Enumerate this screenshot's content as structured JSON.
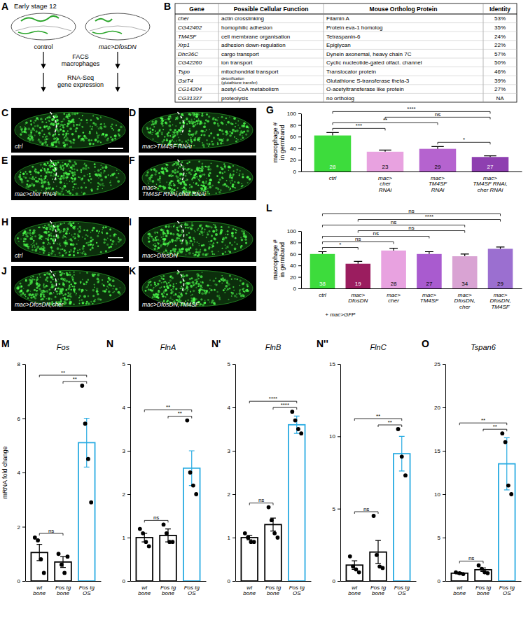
{
  "diagram": {
    "panel": "A",
    "stage": "Early stage 12",
    "groups": [
      "control",
      "mac>DfosDN"
    ],
    "steps": [
      "FACS\nmacrophages",
      "RNA-Seq\ngene expression"
    ]
  },
  "table": {
    "panel": "B",
    "header": [
      "Gene",
      "Possible Cellular Function",
      "Mouse Ortholog Protein",
      "Identity"
    ],
    "rows": [
      [
        "cher",
        "actin crosslinking",
        "Filamin A",
        "53%"
      ],
      [
        "CG42402",
        "homophilic adhesion",
        "Protein eva-1 homolog",
        "35%"
      ],
      [
        "TM4SF",
        "cell membrane organisation",
        "Tetraspanin-6",
        "24%"
      ],
      [
        "Xrp1",
        "adhesion down-regulation",
        "Epiglycan",
        "22%"
      ],
      [
        "Dhc36C",
        "cargo transport",
        "Dynein axonemal, heavy chain 7C",
        "57%"
      ],
      [
        "CG42260",
        "ion transport",
        "Cyclic nucleotide-gated olfact. channel",
        "50%"
      ],
      [
        "Tspo",
        "mitochondrial transport",
        "Translocator protein",
        "46%"
      ],
      [
        "GstT4",
        "detoxification\n(glutathione transfer)",
        "Glutathione S-transferase theta-3",
        "39%"
      ],
      [
        "CG14204",
        "acetyl-CoA metabolism",
        "O-acetyltransferase like protein",
        "27%"
      ],
      [
        "CG31337",
        "proteolysis",
        "no ortholog",
        "NA"
      ]
    ]
  },
  "images": [
    {
      "panel": "C",
      "label": "ctrl"
    },
    {
      "panel": "D",
      "label": "mac>TM4SF RNAi"
    },
    {
      "panel": "E",
      "label": "mac>cher RNAi"
    },
    {
      "panel": "F",
      "label": "mac>\nTM4SF RNAi,cher RNAi"
    },
    {
      "panel": "H",
      "label": "ctrl"
    },
    {
      "panel": "I",
      "label": "mac>DfosDN"
    },
    {
      "panel": "J",
      "label": "mac>DfosDN,cher"
    },
    {
      "panel": "K",
      "label": "mac>DfosDN,TM4SF"
    }
  ],
  "chart_data": [
    {
      "type": "bar",
      "panel": "G",
      "y_label": "macrophage #\nin germband",
      "categories": [
        "ctrl",
        "mac>\ncher\nRNAi",
        "mac>\nTM4SF\nRNAi",
        "mac>\nTM4SF RNAi,\ncher RNAi"
      ],
      "values": [
        62,
        34,
        39,
        25
      ],
      "errors": [
        5,
        3,
        4,
        2
      ],
      "n": [
        28,
        23,
        29,
        27
      ],
      "colors": [
        "#3ddc3c",
        "#e8a2e0",
        "#b563cf",
        "#8e3fb0"
      ],
      "ylim": [
        0,
        100
      ],
      "yticks": [
        0,
        20,
        40,
        60,
        80,
        100
      ],
      "annotations": [
        {
          "text": "***",
          "between": [
            "ctrl",
            "mac>\ncher\nRNAi"
          ]
        },
        {
          "text": "**",
          "between": [
            "ctrl",
            "mac>\nTM4SF\nRNAi"
          ]
        },
        {
          "text": "****",
          "between": [
            "ctrl",
            "mac>\nTM4SF RNAi,\ncher RNAi"
          ]
        },
        {
          "text": "ns",
          "between": [
            "mac>\ncher\nRNAi",
            "mac>\nTM4SF RNAi,\ncher RNAi"
          ]
        },
        {
          "text": "*",
          "between": [
            "mac>\nTM4SF\nRNAi",
            "mac>\nTM4SF RNAi,\ncher RNAi"
          ]
        }
      ]
    },
    {
      "type": "bar",
      "panel": "L",
      "y_label": "macrophage #\nin germband",
      "categories": [
        "ctrl",
        "mac>\nDfosDN",
        "mac>\ncher",
        "mac>\nTM4SF",
        "mac>\nDfosDN,\ncher",
        "mac>\nDfosDN,\nTM4SF"
      ],
      "values": [
        60,
        43,
        66,
        60,
        56,
        69
      ],
      "errors": [
        4,
        4,
        4,
        4,
        4,
        3
      ],
      "n": [
        38,
        19,
        28,
        27,
        34,
        29
      ],
      "colors": [
        "#3ddc3c",
        "#9b1d5f",
        "#e8a2e0",
        "#a95bcf",
        "#d9a3d3",
        "#9b6fd0"
      ],
      "ylim": [
        0,
        100
      ],
      "yticks": [
        0,
        20,
        40,
        60,
        80,
        100
      ],
      "annotations": [
        {
          "text": "*",
          "between": [
            "ctrl",
            "mac>\nDfosDN"
          ]
        },
        {
          "text": "ns",
          "between": [
            "ctrl",
            "mac>\ncher"
          ]
        },
        {
          "text": "ns",
          "between": [
            "ctrl",
            "mac>\nTM4SF"
          ]
        },
        {
          "text": "ns",
          "between": [
            "ctrl",
            "mac>\nDfosDN,\ncher"
          ]
        },
        {
          "text": "ns",
          "between": [
            "ctrl",
            "mac>\nDfosDN,\nTM4SF"
          ]
        },
        {
          "text": "ns",
          "between": [
            "mac>\nDfosDN",
            "mac>\nDfosDN,\ncher"
          ]
        },
        {
          "text": "****",
          "between": [
            "mac>\nDfosDN",
            "mac>\nDfosDN,\nTM4SF"
          ]
        },
        {
          "text": "+ mac>GFP",
          "under": [
            "ctrl",
            "mac>\nDfosDN"
          ]
        }
      ]
    },
    {
      "type": "bar",
      "panel": "M",
      "title": "Fos",
      "y_label": "mRNA fold change",
      "categories": [
        "wt\nbone",
        "Fos tg\nbone",
        "Fos tg\nOS"
      ],
      "values": [
        1.05,
        0.7,
        5.1
      ],
      "errors": [
        0.3,
        0.2,
        0.9
      ],
      "points": [
        [
          1.6,
          1.5,
          0.8,
          0.3
        ],
        [
          1.0,
          0.6,
          0.3,
          0.9
        ],
        [
          7.2,
          5.8,
          4.5,
          2.9
        ]
      ],
      "colors": [
        "#000000",
        "#000000",
        "#29abe2"
      ],
      "marker": "circle",
      "ylim": [
        0,
        8
      ],
      "yticks": [
        0,
        2,
        4,
        6,
        8
      ],
      "annotations": [
        {
          "text": "ns",
          "between": [
            "wt\nbone",
            "Fos tg\nbone"
          ]
        },
        {
          "text": "**",
          "between": [
            "wt\nbone",
            "Fos tg\nOS"
          ]
        },
        {
          "text": "**",
          "between": [
            "Fos tg\nbone",
            "Fos tg\nOS"
          ]
        }
      ]
    },
    {
      "type": "bar",
      "panel": "N",
      "title": "FlnA",
      "categories": [
        "wt\nbone",
        "Fos tg\nbone",
        "Fos tg\nOS"
      ],
      "values": [
        1.0,
        1.05,
        2.6
      ],
      "errors": [
        0.1,
        0.15,
        0.4
      ],
      "points": [
        [
          1.2,
          1.1,
          0.9,
          0.8
        ],
        [
          1.3,
          1.1,
          0.9,
          0.9
        ],
        [
          3.7,
          2.5,
          2.2,
          2.0
        ]
      ],
      "colors": [
        "#000000",
        "#000000",
        "#29abe2"
      ],
      "marker": "circle",
      "ylim": [
        0,
        5
      ],
      "yticks": [
        0,
        1,
        2,
        3,
        4,
        5
      ],
      "annotations": [
        {
          "text": "ns",
          "between": [
            "wt\nbone",
            "Fos tg\nbone"
          ]
        },
        {
          "text": "**",
          "between": [
            "wt\nbone",
            "Fos tg\nOS"
          ]
        },
        {
          "text": "**",
          "between": [
            "Fos tg\nbone",
            "Fos tg\nOS"
          ]
        }
      ]
    },
    {
      "type": "bar",
      "panel": "N'",
      "title": "FlnB",
      "categories": [
        "wt\nbone",
        "Fos tg\nbone",
        "Fos tg\nOS"
      ],
      "values": [
        1.0,
        1.3,
        3.6
      ],
      "errors": [
        0.05,
        0.15,
        0.2
      ],
      "points": [
        [
          1.1,
          1.0,
          0.9,
          0.9
        ],
        [
          1.7,
          1.4,
          1.1,
          1.0
        ],
        [
          3.9,
          3.7,
          3.5,
          3.4
        ]
      ],
      "colors": [
        "#000000",
        "#000000",
        "#29abe2"
      ],
      "marker": "circle",
      "ylim": [
        0,
        5
      ],
      "yticks": [
        0,
        1,
        2,
        3,
        4,
        5
      ],
      "annotations": [
        {
          "text": "ns",
          "between": [
            "wt\nbone",
            "Fos tg\nbone"
          ]
        },
        {
          "text": "****",
          "between": [
            "wt\nbone",
            "Fos tg\nOS"
          ]
        },
        {
          "text": "****",
          "between": [
            "Fos tg\nbone",
            "Fos tg\nOS"
          ]
        }
      ]
    },
    {
      "type": "bar",
      "panel": "N''",
      "title": "FlnC",
      "categories": [
        "wt\nbone",
        "Fos tg\nbone",
        "Fos tg\nOS"
      ],
      "values": [
        1.1,
        2.0,
        8.8
      ],
      "errors": [
        0.3,
        0.8,
        1.2
      ],
      "points": [
        [
          1.7,
          1.0,
          0.8,
          0.6
        ],
        [
          4.5,
          1.8,
          1.0,
          0.9
        ],
        [
          10.5,
          8.6,
          7.3
        ]
      ],
      "colors": [
        "#000000",
        "#000000",
        "#29abe2"
      ],
      "marker": "circle",
      "ylim": [
        0,
        15
      ],
      "yticks": [
        0,
        5,
        10,
        15
      ],
      "annotations": [
        {
          "text": "ns",
          "between": [
            "wt\nbone",
            "Fos tg\nbone"
          ]
        },
        {
          "text": "**",
          "between": [
            "wt\nbone",
            "Fos tg\nOS"
          ]
        },
        {
          "text": "**",
          "between": [
            "Fos tg\nbone",
            "Fos tg\nOS"
          ]
        }
      ]
    },
    {
      "type": "bar",
      "panel": "O",
      "title": "Tspan6",
      "categories": [
        "wt\nbone",
        "Fos tg\nbone",
        "Fos tg\nOS"
      ],
      "values": [
        0.9,
        1.3,
        13.5
      ],
      "errors": [
        0.1,
        0.2,
        3.0
      ],
      "points": [
        [
          1.0,
          0.9,
          0.8
        ],
        [
          1.8,
          1.4,
          1.0,
          0.9
        ],
        [
          17,
          16,
          11,
          10
        ]
      ],
      "colors": [
        "#000000",
        "#000000",
        "#29abe2"
      ],
      "marker": "circle",
      "ylim": [
        0,
        25
      ],
      "yticks": [
        0,
        5,
        10,
        15,
        20,
        25
      ],
      "annotations": [
        {
          "text": "ns",
          "between": [
            "wt\nbone",
            "Fos tg\nbone"
          ]
        },
        {
          "text": "**",
          "between": [
            "wt\nbone",
            "Fos tg\nOS"
          ]
        },
        {
          "text": "**",
          "between": [
            "Fos tg\nbone",
            "Fos tg\nOS"
          ]
        }
      ]
    }
  ]
}
